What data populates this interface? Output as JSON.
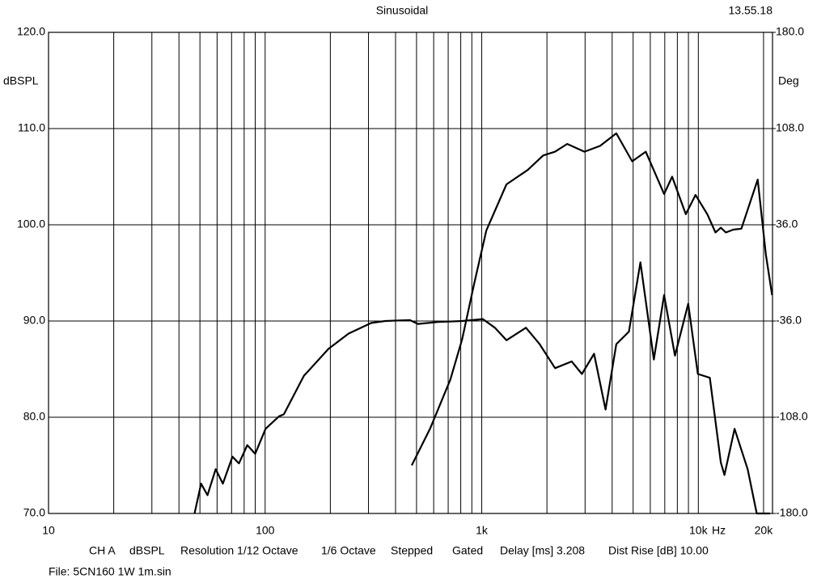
{
  "chart_data": {
    "type": "line",
    "title": "Sinusoidal",
    "annotations": [
      "13.55.18"
    ],
    "ylabel": "dBSPL",
    "y2label": "Deg",
    "xlabel": "Hz",
    "log_x": true,
    "grid": true,
    "xlim": [
      10,
      22000
    ],
    "xticks": [
      10,
      100,
      {
        "value": 1000,
        "label": "1k"
      },
      {
        "value": 10000,
        "label": "10k"
      },
      {
        "value": 20000,
        "label": "20k"
      }
    ],
    "xminor": [
      20,
      30,
      40,
      50,
      60,
      70,
      80,
      90,
      200,
      300,
      400,
      500,
      600,
      700,
      800,
      900,
      2000,
      3000,
      4000,
      5000,
      6000,
      7000,
      8000,
      9000
    ],
    "ylim": [
      70,
      120
    ],
    "yticks": [
      {
        "value": 70,
        "label": "70.0"
      },
      {
        "value": 80,
        "label": "80.0"
      },
      {
        "value": 90,
        "label": "90.0"
      },
      {
        "value": 100,
        "label": "100.0"
      },
      {
        "value": 110,
        "label": "110.0"
      },
      {
        "value": 120,
        "label": "120.0"
      }
    ],
    "y2lim": [
      -180,
      180
    ],
    "y2ticks": [
      {
        "value": -180,
        "label": "-180.0"
      },
      {
        "value": -108,
        "label": "-108.0"
      },
      {
        "value": -36,
        "label": "-36.0"
      },
      {
        "value": 36,
        "label": "36.0"
      },
      {
        "value": 108,
        "label": "108.0"
      },
      {
        "value": 180,
        "label": "180.0"
      }
    ],
    "series": [
      {
        "color": "#000000",
        "x": [
          47.2,
          50.6,
          54.2,
          59.1,
          63.8,
          70.7,
          75.7,
          82.7,
          90,
          100.5,
          116,
          122,
          151,
          196,
          243,
          309,
          358,
          465,
          508,
          629,
          812,
          1012,
          1150,
          1300,
          1600,
          1850,
          2180,
          2600,
          2900,
          3300,
          3730,
          4180,
          4780,
          5400,
          6230,
          6950,
          7800,
          8980,
          9950,
          11300,
          12700,
          13200,
          14700,
          16900,
          18600,
          21400
        ],
        "values": [
          70,
          73.1,
          71.9,
          74.6,
          73.1,
          75.9,
          75.2,
          77.1,
          76.2,
          78.8,
          80.1,
          80.3,
          84.3,
          87.1,
          88.7,
          89.8,
          90,
          90.1,
          89.7,
          89.9,
          90,
          90.2,
          89.3,
          88,
          89.3,
          87.6,
          85.1,
          85.8,
          84.5,
          86.6,
          80.8,
          87.6,
          88.9,
          96.1,
          86,
          92.7,
          86.4,
          91.8,
          84.5,
          84.1,
          75.3,
          74,
          78.8,
          74.6,
          70,
          70
        ]
      },
      {
        "color": "#000000",
        "x": [
          475,
          577,
          716,
          812,
          925,
          1050,
          1300,
          1630,
          1920,
          2180,
          2480,
          2980,
          3520,
          4180,
          4950,
          5720,
          6950,
          7570,
          8750,
          9700,
          11000,
          12000,
          12700,
          13400,
          14500,
          15800,
          18800,
          20500,
          21900
        ],
        "values": [
          75,
          78.8,
          83.9,
          88.1,
          94,
          99.4,
          104.2,
          105.7,
          107.2,
          107.6,
          108.4,
          107.6,
          108.2,
          109.5,
          106.6,
          107.6,
          103.2,
          105,
          101.1,
          103.1,
          101.1,
          99.2,
          99.7,
          99.2,
          99.5,
          99.6,
          104.7,
          96.9,
          92.7
        ]
      }
    ]
  },
  "footer": {
    "items": [
      "CH A",
      "dBSPL",
      "Resolution 1/12 Octave",
      "1/6 Octave",
      "Stepped",
      "Gated",
      "Delay [ms] 3.208",
      "Dist Rise [dB] 10.00"
    ],
    "file": "File: 5CN160 1W 1m.sin"
  }
}
